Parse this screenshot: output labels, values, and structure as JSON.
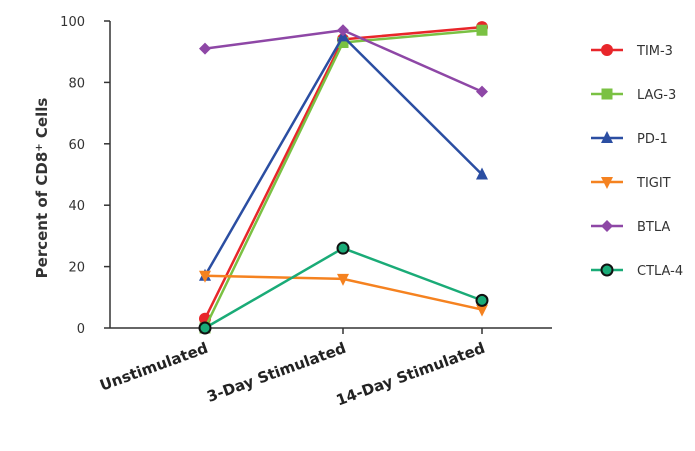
{
  "chart_data": {
    "type": "line",
    "ylabel": {
      "main": "Percent of CD8",
      "sup": "+",
      "tail": " Cells"
    },
    "ylim": [
      0,
      100
    ],
    "yticks": [
      "0",
      "20",
      "40",
      "60",
      "80",
      "100"
    ],
    "categories": [
      "Unstimulated",
      "3-Day Stimulated",
      "14-Day Stimulated"
    ],
    "legend_position": "right",
    "series": [
      {
        "name": "TIM-3",
        "color": "#e8262a",
        "marker": "circle",
        "values": [
          3,
          94,
          98
        ]
      },
      {
        "name": "LAG-3",
        "color": "#7ac143",
        "marker": "square",
        "values": [
          0,
          93,
          97
        ]
      },
      {
        "name": "PD-1",
        "color": "#2b4ea2",
        "marker": "triangle-up",
        "values": [
          17,
          95,
          50
        ]
      },
      {
        "name": "TIGIT",
        "color": "#f58220",
        "marker": "triangle-down",
        "values": [
          17,
          16,
          6
        ]
      },
      {
        "name": "BTLA",
        "color": "#8e47a6",
        "marker": "diamond",
        "values": [
          91,
          97,
          77
        ]
      },
      {
        "name": "CTLA-4",
        "color": "#1aab77",
        "marker": "circle-outline",
        "values": [
          0,
          26,
          9
        ]
      }
    ]
  }
}
